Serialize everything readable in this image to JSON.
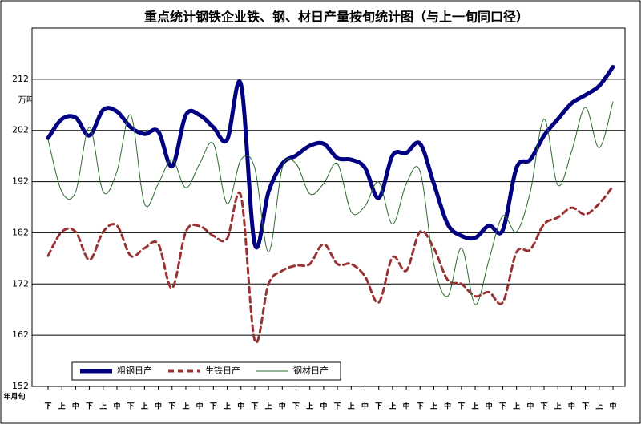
{
  "chart_data": {
    "type": "line",
    "title": "重点统计钢铁企业铁、钢、材日产量按旬统计图（与上一旬同口径）",
    "y_label": "万吨",
    "x_label": "年月旬",
    "categories": [
      "下",
      "上",
      "中",
      "下",
      "上",
      "中",
      "下",
      "上",
      "中",
      "下",
      "上",
      "中",
      "下",
      "上",
      "中",
      "下",
      "上",
      "中",
      "下",
      "上",
      "中",
      "下",
      "上",
      "中",
      "下",
      "上",
      "中",
      "下",
      "上",
      "中",
      "下",
      "上",
      "中",
      "下",
      "上",
      "中",
      "下",
      "上",
      "中",
      "下",
      "上",
      "中"
    ],
    "ylim": [
      152,
      222
    ],
    "yticks": [
      152,
      162,
      172,
      182,
      192,
      202,
      212
    ],
    "grid": true,
    "legend": "bottom-left",
    "series": [
      {
        "name": "粗钢日产",
        "color": "#000080",
        "style": "thick",
        "values": [
          200.5,
          204.2,
          204.5,
          201,
          206,
          205.7,
          202.6,
          201.3,
          201.8,
          195,
          205,
          205,
          202.6,
          200.2,
          211,
          179.8,
          190,
          195.5,
          197.1,
          199,
          199.4,
          196.6,
          196.3,
          194.7,
          188.8,
          197.1,
          197.6,
          199.4,
          191.6,
          183.7,
          181.4,
          181,
          183.4,
          182.5,
          194.7,
          196.3,
          201,
          204.2,
          207.3,
          208.9,
          210.7,
          214.4
        ]
      },
      {
        "name": "生铁日产",
        "color": "#993333",
        "style": "dashed",
        "values": [
          177.5,
          182.2,
          182.2,
          176.7,
          182.2,
          183.4,
          177.5,
          179,
          179.8,
          171.2,
          182.2,
          183.3,
          181.4,
          180.9,
          189.2,
          161,
          172,
          174.6,
          175.6,
          175.9,
          179.8,
          175.9,
          175.9,
          173.5,
          168.4,
          177.2,
          174.6,
          182.2,
          179,
          172.8,
          172,
          169.6,
          170.4,
          168.4,
          178.2,
          178.7,
          183.7,
          185,
          186.9,
          185.6,
          187.7,
          191.1
        ]
      },
      {
        "name": "钢材日产",
        "color": "#2e6b2e",
        "style": "thin",
        "values": [
          200.2,
          190,
          190,
          202.6,
          190,
          194,
          205,
          187.7,
          191.6,
          196.3,
          190.8,
          195.5,
          199.4,
          187.7,
          196.3,
          194.7,
          178.2,
          194.7,
          195.5,
          189.6,
          191.6,
          195.5,
          186.1,
          187.2,
          191.9,
          183.7,
          191.6,
          194,
          175.9,
          169.6,
          179,
          168,
          176.7,
          185.3,
          182.2,
          190,
          204.2,
          191.3,
          197.9,
          206.5,
          198.6,
          207.6
        ]
      }
    ]
  }
}
